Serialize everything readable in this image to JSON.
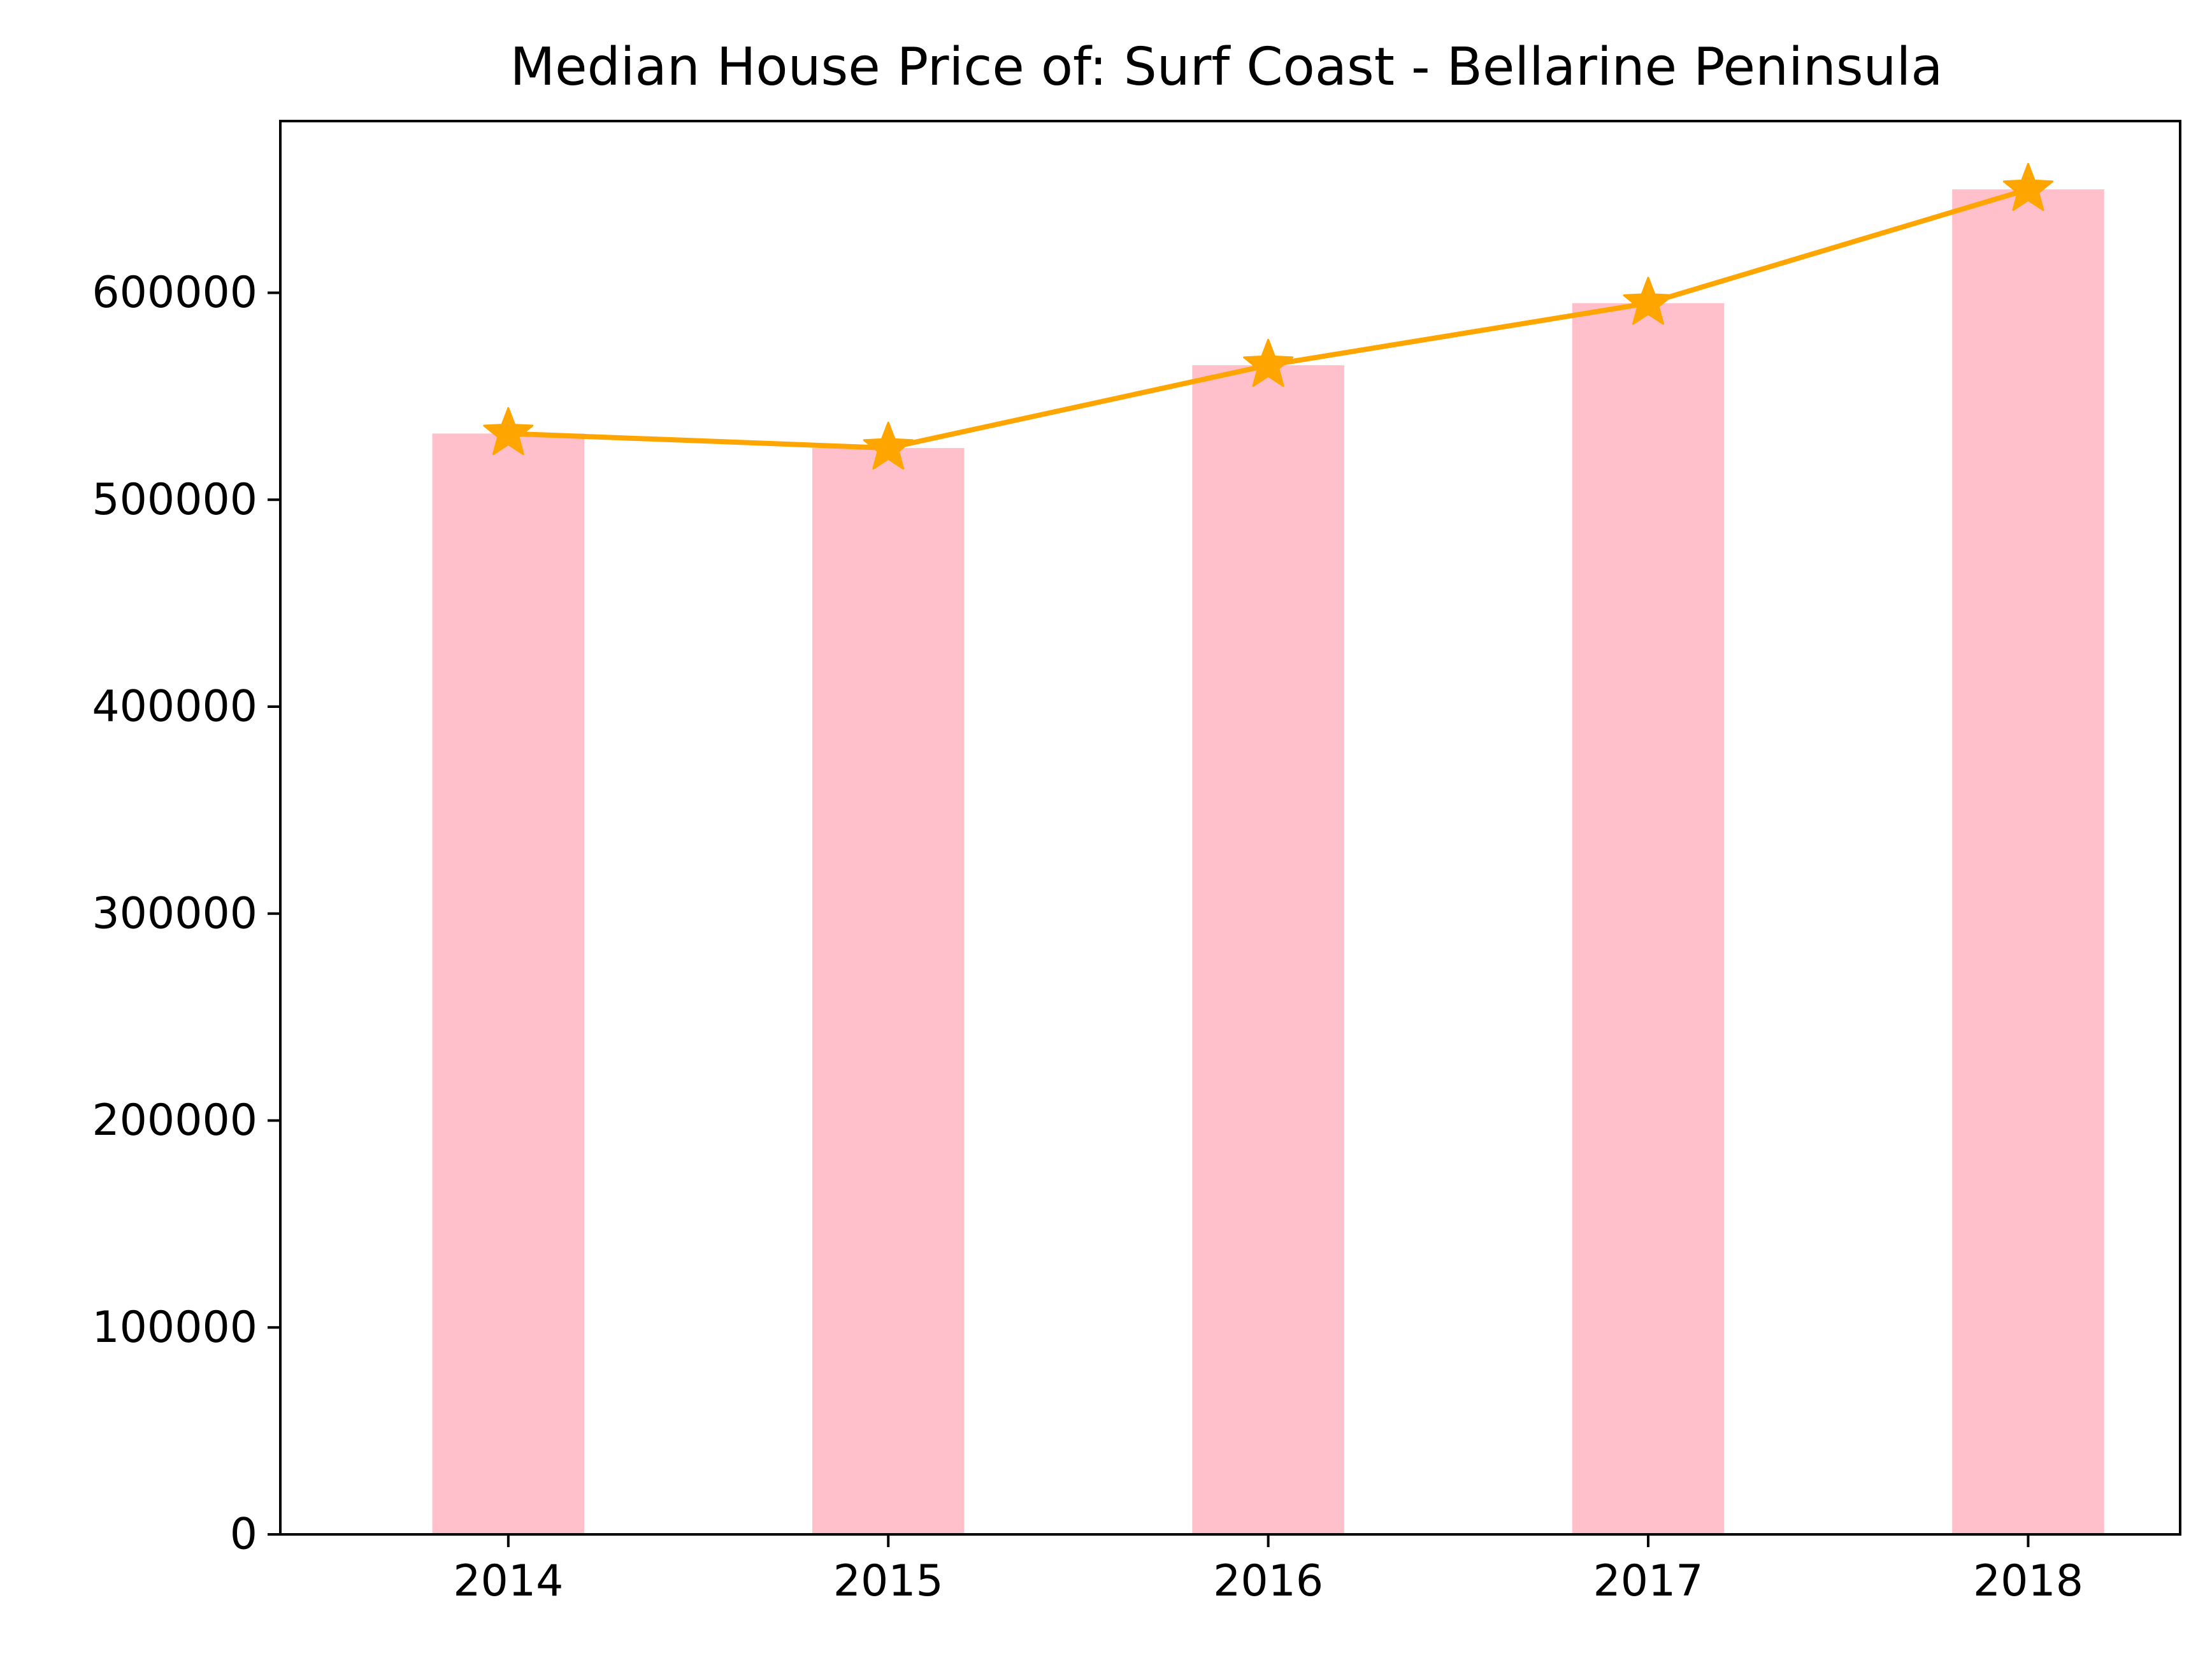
{
  "chart_data": {
    "type": "bar",
    "title": "Median House Price of: Surf Coast - Bellarine Peninsula",
    "xlabel": "",
    "ylabel": "",
    "categories": [
      "2014",
      "2015",
      "2016",
      "2017",
      "2018"
    ],
    "ylim": [
      0,
      683000
    ],
    "yticks": [
      "0",
      "100000",
      "200000",
      "300000",
      "400000",
      "500000",
      "600000"
    ],
    "grid": false,
    "series": [
      {
        "kind": "bar",
        "values": [
          532000,
          525000,
          565000,
          595000,
          650000
        ],
        "color": "#ffc0cb"
      },
      {
        "kind": "line",
        "marker": "star",
        "values": [
          532000,
          525000,
          565000,
          595000,
          650000
        ],
        "color": "#ffa500"
      }
    ]
  }
}
